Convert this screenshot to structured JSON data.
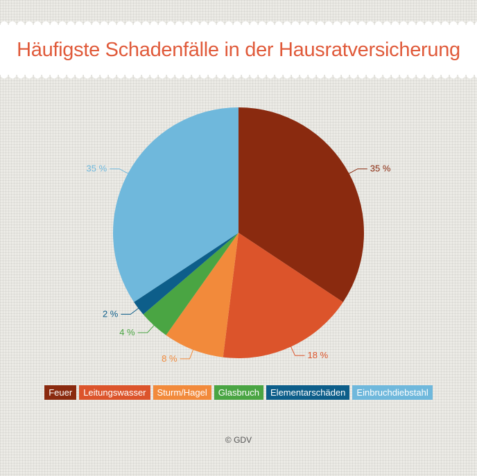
{
  "title": "Häufigste Schadenfälle in der Hausratversicherung",
  "source": "© GDV",
  "chart_data": {
    "type": "pie",
    "title": "Häufigste Schadenfälle in der Hausratversicherung",
    "unit": "%",
    "legend_placement": "bottom",
    "slices": [
      {
        "name": "Feuer",
        "value": 35,
        "label": "35 %",
        "color": "#8a2a0f"
      },
      {
        "name": "Leitungswasser",
        "value": 18,
        "label": "18 %",
        "color": "#dc542b"
      },
      {
        "name": "Sturm/Hagel",
        "value": 8,
        "label": "8 %",
        "color": "#f28a3b"
      },
      {
        "name": "Glasbruch",
        "value": 4,
        "label": "4 %",
        "color": "#4aa543"
      },
      {
        "name": "Elementarschäden",
        "value": 2,
        "label": "2 %",
        "color": "#0d5e8a"
      },
      {
        "name": "Einbruchdiebstahl",
        "value": 35,
        "label": "35 %",
        "color": "#6fb8dc"
      }
    ]
  }
}
